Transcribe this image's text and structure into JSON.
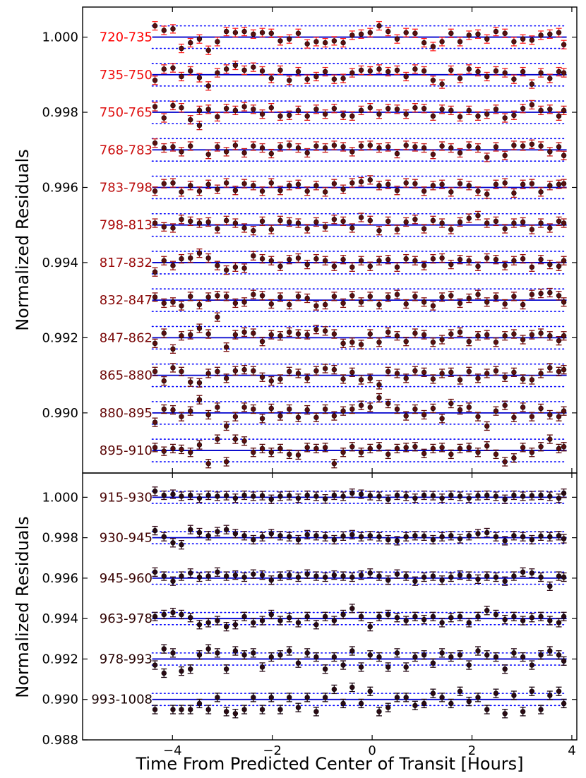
{
  "chart_data": [
    {
      "type": "scatter",
      "ylabel": "Normalized Residuals",
      "xlim": [
        -5.8,
        4.1
      ],
      "ylim": [
        0.9884,
        1.0008
      ],
      "yticks": [
        "1.000",
        "0.998",
        "0.996",
        "0.994",
        "0.992",
        "0.990"
      ],
      "ytick_values": [
        1.0,
        0.998,
        0.996,
        0.994,
        0.992,
        0.99
      ],
      "grid": false,
      "offset_step": 0.001,
      "band_half_width": 0.0003,
      "marker_color": "#5a0f0f",
      "model_line_color": "#0000cc",
      "band_line_color": "#0000ff",
      "series": [
        {
          "name": "720-735",
          "label_color": "#ff0000",
          "errorbar_color": "#ff2020",
          "offset": 1.0
        },
        {
          "name": "735-750",
          "label_color": "#f01010",
          "errorbar_color": "#e81818",
          "offset": 0.999
        },
        {
          "name": "750-765",
          "label_color": "#e01010",
          "errorbar_color": "#d81818",
          "offset": 0.998
        },
        {
          "name": "768-783",
          "label_color": "#cc0e0e",
          "errorbar_color": "#c81515",
          "offset": 0.997
        },
        {
          "name": "783-798",
          "label_color": "#bb0c0c",
          "errorbar_color": "#b81212",
          "offset": 0.996
        },
        {
          "name": "798-813",
          "label_color": "#aa0b0b",
          "errorbar_color": "#a81010",
          "offset": 0.995
        },
        {
          "name": "817-832",
          "label_color": "#990a0a",
          "errorbar_color": "#980e0e",
          "offset": 0.994
        },
        {
          "name": "832-847",
          "label_color": "#880909",
          "errorbar_color": "#880c0c",
          "offset": 0.993
        },
        {
          "name": "847-862",
          "label_color": "#7a0808",
          "errorbar_color": "#7a0b0b",
          "offset": 0.992
        },
        {
          "name": "865-880",
          "label_color": "#6e0707",
          "errorbar_color": "#6e0a0a",
          "offset": 0.991
        },
        {
          "name": "880-895",
          "label_color": "#640707",
          "errorbar_color": "#640909",
          "offset": 0.99
        },
        {
          "name": "895-910",
          "label_color": "#5a0606",
          "errorbar_color": "#5a0808",
          "offset": 0.989
        }
      ]
    },
    {
      "type": "scatter",
      "xlabel": "Time From Predicted Center of Transit [Hours]",
      "ylabel": "Normalized Residuals",
      "xlim": [
        -5.8,
        4.1
      ],
      "ylim": [
        0.988,
        1.0012
      ],
      "xticks": [
        "−4",
        "−2",
        "0",
        "2",
        "4"
      ],
      "xtick_values": [
        -4,
        -2,
        0,
        2,
        4
      ],
      "yticks": [
        "1.000",
        "0.998",
        "0.996",
        "0.994",
        "0.992",
        "0.990",
        "0.988"
      ],
      "ytick_values": [
        1.0,
        0.998,
        0.996,
        0.994,
        0.992,
        0.99,
        0.988
      ],
      "grid": false,
      "offset_step": 0.002,
      "band_half_width": 0.0003,
      "marker_color": "#2a0a14",
      "model_line_color": "#0000cc",
      "band_line_color": "#0000ff",
      "series": [
        {
          "name": "915-930",
          "label_color": "#4a0606",
          "errorbar_color": "#3a0818",
          "offset": 1.0
        },
        {
          "name": "930-945",
          "label_color": "#420505",
          "errorbar_color": "#340818",
          "offset": 0.998
        },
        {
          "name": "945-960",
          "label_color": "#3a0404",
          "errorbar_color": "#2e0816",
          "offset": 0.996
        },
        {
          "name": "963-978",
          "label_color": "#300303",
          "errorbar_color": "#280614",
          "offset": 0.994
        },
        {
          "name": "978-993",
          "label_color": "#260202",
          "errorbar_color": "#220512",
          "offset": 0.992
        },
        {
          "name": "993-1008",
          "label_color": "#180101",
          "errorbar_color": "#1a0410",
          "offset": 0.99
        }
      ]
    }
  ],
  "x_values_hours": [
    -4.35,
    -4.17,
    -3.99,
    -3.82,
    -3.64,
    -3.46,
    -3.28,
    -3.1,
    -2.92,
    -2.74,
    -2.56,
    -2.38,
    -2.2,
    -2.02,
    -1.84,
    -1.66,
    -1.48,
    -1.3,
    -1.12,
    -0.94,
    -0.76,
    -0.58,
    -0.4,
    -0.22,
    -0.04,
    0.14,
    0.32,
    0.5,
    0.68,
    0.86,
    1.04,
    1.22,
    1.4,
    1.58,
    1.76,
    1.94,
    2.12,
    2.3,
    2.48,
    2.66,
    2.84,
    3.02,
    3.2,
    3.38,
    3.56,
    3.74,
    3.84
  ],
  "residuals": {
    "720-735": [
      0.0003,
      0.00018,
      0.00022,
      -0.0003,
      -0.00015,
      -5e-05,
      -0.00035,
      -0.00012,
      0.00015,
      0.00012,
      0.00015,
      8e-05,
      0.00012,
      0.0001,
      -0.0001,
      -5e-05,
      0.0001,
      -0.00018,
      -0.00012,
      -0.00015,
      -0.0001,
      -0.00015,
      5e-05,
      8e-05,
      0.00012,
      0.0003,
      0.00015,
      -5e-05,
      0.00012,
      0.0001,
      -0.00015,
      -0.00025,
      -0.00012,
      0.0001,
      -0.00012,
      5e-05,
      8e-05,
      -5e-05,
      0.00015,
      0.0001,
      -0.00012,
      -5e-05,
      -8e-05,
      5e-05,
      8e-05,
      0.00012,
      -0.0002
    ],
    "735-750": [
      -0.00015,
      0.00015,
      0.00018,
      -5e-05,
      0.0001,
      -8e-05,
      -0.0003,
      5e-05,
      0.00015,
      0.00025,
      0.00012,
      0.0002,
      0.0001,
      -0.0001,
      0.00012,
      -0.00015,
      8e-05,
      -0.00012,
      -5e-05,
      8e-05,
      -0.00012,
      -0.0001,
      5e-05,
      0.00012,
      0.0001,
      0.00015,
      8e-05,
      0.00012,
      -5e-05,
      0.00015,
      0.0001,
      -0.00015,
      -0.00025,
      0.00012,
      -0.0001,
      0.00015,
      8e-05,
      -5e-05,
      0.0001,
      5e-05,
      -0.00012,
      8e-05,
      -0.00025,
      5e-05,
      -0.0001,
      8e-05,
      5e-05
    ],
    "750-765": [
      0.00015,
      -0.00015,
      0.00018,
      0.00012,
      -0.0002,
      5e-05,
      8e-05,
      -0.00012,
      0.0001,
      5e-05,
      0.00015,
      8e-05,
      -5e-05,
      0.00012,
      -0.0001,
      -8e-05,
      5e-05,
      -0.0001,
      8e-05,
      -5e-05,
      0.0001,
      -8e-05,
      -0.0001,
      5e-05,
      0.00012,
      -5e-05,
      0.0001,
      8e-05,
      -5e-05,
      0.00012,
      0.0001,
      -0.0001,
      8e-05,
      5e-05,
      -0.00012,
      5e-05,
      -0.0001,
      -5e-05,
      8e-05,
      -0.00015,
      -8e-05,
      0.0001,
      0.0002,
      5e-05,
      8e-05,
      -0.0001,
      5e-05
    ],
    "768-783": [
      0.00018,
      5e-05,
      8e-05,
      -5e-05,
      0.0001,
      0.00065,
      -0.00012,
      8e-05,
      -5e-05,
      0.00012,
      -8e-05,
      0.0001,
      5e-05,
      -0.0001,
      8e-05,
      0.00012,
      5e-05,
      -8e-05,
      0.0001,
      5e-05,
      0.00012,
      8e-05,
      -5e-05,
      0.0001,
      0.00012,
      5e-05,
      8e-05,
      -0.0001,
      0.00012,
      8e-05,
      5e-05,
      -0.00012,
      0.0001,
      5e-05,
      -8e-05,
      0.0001,
      5e-05,
      -0.0002,
      8e-05,
      -0.00015,
      0.00012,
      0.0001,
      0.00015,
      0.0001,
      -5e-05,
      8e-05,
      -0.00015
    ],
    "783-798": [
      -0.0001,
      0.0001,
      0.00012,
      -0.00012,
      5e-05,
      -0.0001,
      8e-05,
      -5e-05,
      0.00012,
      -8e-05,
      0.0001,
      5e-05,
      -0.0001,
      0.00012,
      -8e-05,
      5e-05,
      8e-05,
      -0.0001,
      5e-05,
      -0.00012,
      0.0001,
      -5e-05,
      0.00012,
      0.00015,
      0.0002,
      5e-05,
      8e-05,
      -8e-05,
      0.00012,
      0.0001,
      -0.0001,
      5e-05,
      8e-05,
      -0.00012,
      0.0001,
      5e-05,
      -0.0001,
      -0.00018,
      8e-05,
      0.00012,
      -0.00015,
      8e-05,
      0.0001,
      -0.00012,
      5e-05,
      8e-05,
      0.0001
    ],
    "798-813": [
      5e-05,
      -5e-05,
      -8e-05,
      0.00015,
      0.0001,
      5e-05,
      8e-05,
      -0.0001,
      0.00012,
      5e-05,
      -8e-05,
      -0.00015,
      0.0001,
      -0.00012,
      0.00012,
      8e-05,
      5e-05,
      -0.0001,
      8e-05,
      -5e-05,
      0.00015,
      0.0001,
      -8e-05,
      0.0002,
      0.00012,
      -0.00015,
      0.0001,
      -0.00012,
      8e-05,
      0.00015,
      -0.0001,
      0.00012,
      5e-05,
      -0.00012,
      8e-05,
      0.00018,
      0.00025,
      5e-05,
      0.0001,
      -0.0001,
      5e-05,
      8e-05,
      -0.00012,
      5e-05,
      -8e-05,
      0.0001,
      5e-05
    ],
    "817-832": [
      -0.00025,
      5e-05,
      -8e-05,
      0.0001,
      0.00012,
      0.00025,
      0.00012,
      -8e-05,
      -0.0002,
      -0.00012,
      -0.00015,
      0.00018,
      0.0001,
      5e-05,
      -0.0001,
      8e-05,
      0.00012,
      -5e-05,
      0.0001,
      5e-05,
      -0.0001,
      8e-05,
      -0.00012,
      5e-05,
      -0.0001,
      5e-05,
      8e-05,
      -0.00012,
      0.0001,
      5e-05,
      -8e-05,
      0.0001,
      0.00012,
      -5e-05,
      8e-05,
      5e-05,
      -0.0001,
      0.00012,
      8e-05,
      -8e-05,
      5e-05,
      0.0001,
      -0.00012,
      8e-05,
      -5e-05,
      -0.0001,
      5e-05
    ],
    "832-847": [
      8e-05,
      -8e-05,
      -5e-05,
      -0.00015,
      0.0001,
      -0.00012,
      8e-05,
      0.00012,
      0.0001,
      -8e-05,
      -5e-05,
      0.00015,
      0.00012,
      -0.0001,
      8e-05,
      -0.00012,
      0.0001,
      5e-05,
      -0.00015,
      -0.00012,
      0.0001,
      -8e-05,
      0.00012,
      -5e-05,
      0.0001,
      -0.00012,
      8e-05,
      0.00015,
      -0.0001,
      0.0001,
      -5e-05,
      -0.00015,
      8e-05,
      0.00012,
      -8e-05,
      5e-05,
      0.00015,
      -5e-05,
      8e-05,
      -0.0001,
      0.0001,
      -0.00012,
      0.00015,
      0.00018,
      0.0002,
      0.00012,
      -5e-05
    ],
    "847-862": [
      -0.00015,
      0.00012,
      -0.0003,
      5e-05,
      8e-05,
      0.00025,
      0.0001,
      0.00055,
      -0.00025,
      8e-05,
      0.00015,
      0.00012,
      -0.0001,
      8e-05,
      5e-05,
      0.00015,
      0.0001,
      8e-05,
      0.00022,
      0.00018,
      0.0001,
      -0.00015,
      -0.00012,
      -0.00018,
      0.0001,
      -0.00012,
      0.00015,
      5e-05,
      -0.0001,
      0.00012,
      8e-05,
      -0.00012,
      -5e-05,
      0.0001,
      0.00015,
      -0.0001,
      5e-05,
      8e-05,
      -0.00012,
      5e-05,
      0.0001,
      -5e-05,
      8e-05,
      0.00012,
      5e-05,
      -8e-05,
      5e-05
    ],
    "865-880": [
      0.0001,
      -0.00015,
      0.0002,
      0.0001,
      -0.00018,
      -0.0002,
      5e-05,
      0.0001,
      -8e-05,
      0.00012,
      0.00015,
      0.00012,
      -5e-05,
      -0.00015,
      -0.0001,
      0.0001,
      5e-05,
      -8e-05,
      0.00012,
      0.00018,
      0.00015,
      -0.0001,
      8e-05,
      -0.00012,
      -8e-05,
      -0.00025,
      0.0001,
      5e-05,
      -8e-05,
      0.00012,
      8e-05,
      -0.0001,
      5e-05,
      8e-05,
      -0.00012,
      0.0001,
      -8e-05,
      5e-05,
      0.00012,
      -5e-05,
      8e-05,
      -0.0001,
      -0.00012,
      5e-05,
      0.0002,
      0.0001,
      0.00015
    ],
    "880-895": [
      -0.00025,
      0.0001,
      8e-05,
      -0.0001,
      5e-05,
      0.00035,
      -5e-05,
      0.00015,
      -0.00035,
      -0.0001,
      0.00015,
      0.0001,
      -0.00015,
      0.00012,
      -8e-05,
      0.0001,
      -0.00012,
      8e-05,
      -0.00012,
      0.0001,
      -8e-05,
      5e-05,
      0.0001,
      0.0002,
      0.00015,
      0.0004,
      0.00025,
      0.0001,
      -8e-05,
      0.0001,
      -5e-05,
      0.00012,
      -0.00015,
      0.00025,
      8e-05,
      0.00015,
      -0.0001,
      -0.00035,
      5e-05,
      0.0002,
      -0.00012,
      0.00015,
      -0.0001,
      0.00012,
      -5e-05,
      -0.0001,
      5e-05
    ],
    "895-910": [
      8e-05,
      -2e-05,
      5e-05,
      3e-05,
      -5e-05,
      0.00015,
      -0.00035,
      0.0003,
      -0.0003,
      0.0003,
      0.00025,
      -5e-05,
      5e-05,
      -5e-05,
      5e-05,
      -0.0001,
      -0.00012,
      8e-05,
      5e-05,
      8e-05,
      -0.00035,
      -5e-05,
      0.0001,
      -5e-05,
      5e-05,
      0.0001,
      -0.0001,
      5e-05,
      8e-05,
      0.0001,
      -8e-05,
      5e-05,
      8e-05,
      -0.0001,
      5e-05,
      8e-05,
      -5e-05,
      0.00012,
      -0.0001,
      -0.0003,
      -0.0002,
      8e-05,
      -5e-05,
      0.0001,
      0.0003,
      5e-05,
      0.0001
    ]
  },
  "residuals_lower": {
    "915-930": [
      0.0003,
      0.0001,
      0.00015,
      5e-05,
      0.0001,
      -5e-05,
      0.0001,
      5e-05,
      8e-05,
      -5e-05,
      0.0001,
      5e-05,
      8e-05,
      -0.0001,
      5e-05,
      8e-05,
      -5e-05,
      0.0001,
      5e-05,
      -8e-05,
      0.0001,
      5e-05,
      0.0002,
      0.00015,
      8e-05,
      5e-05,
      -0.0001,
      0.0001,
      5e-05,
      -5e-05,
      0.0001,
      8e-05,
      -5e-05,
      0.0001,
      5e-05,
      -5e-05,
      8e-05,
      0.0001,
      5e-05,
      -0.0001,
      0.0001,
      5e-05,
      8e-05,
      0.0001,
      5e-05,
      -5e-05,
      0.0002
    ],
    "930-945": [
      0.00035,
      5e-05,
      -0.00025,
      -0.00035,
      0.0004,
      0.00025,
      0.0001,
      0.0003,
      0.0004,
      0.0002,
      0.0001,
      -0.0001,
      5e-05,
      0.0002,
      0.0001,
      5e-05,
      -0.0001,
      0.00015,
      0.0001,
      5e-05,
      -0.0001,
      8e-05,
      0.00015,
      5e-05,
      0.0001,
      5e-05,
      -0.0001,
      -0.00015,
      5e-05,
      0.0001,
      8e-05,
      -0.0001,
      5e-05,
      0.0001,
      -5e-05,
      0.0001,
      0.0002,
      0.00025,
      5e-05,
      -0.00015,
      0.0001,
      5e-05,
      -0.0001,
      8e-05,
      5e-05,
      0.0001,
      -5e-05
    ],
    "945-960": [
      0.0003,
      0.0001,
      -0.00015,
      0.0001,
      0.00025,
      5e-05,
      0.0001,
      0.0003,
      0.0001,
      0.00015,
      5e-05,
      0.0002,
      0.00015,
      -0.0001,
      0.0001,
      0.00015,
      5e-05,
      0.0002,
      0.0001,
      5e-05,
      0.00015,
      0.0001,
      5e-05,
      0.00015,
      0.00025,
      0.0001,
      -0.0001,
      0.0002,
      0.0001,
      -0.00015,
      5e-05,
      0.0001,
      -0.0001,
      5e-05,
      0.00015,
      0.0001,
      -5e-05,
      0.0001,
      5e-05,
      -0.00015,
      0.0001,
      0.0003,
      0.00025,
      5e-05,
      -0.0004,
      0.0001,
      5e-05
    ],
    "963-978": [
      0.0001,
      0.0002,
      0.0003,
      0.0002,
      5e-05,
      -0.0003,
      -0.0002,
      -0.0001,
      -0.0004,
      -0.0003,
      0.0001,
      -0.0002,
      -0.0001,
      0.0002,
      -0.0001,
      5e-05,
      -0.0002,
      0.0001,
      -0.0003,
      0.0001,
      -0.0001,
      0.0002,
      0.0005,
      0.0001,
      -0.0004,
      0.0001,
      0.0002,
      5e-05,
      -0.0001,
      0.0001,
      -5e-05,
      0.0001,
      -0.0002,
      5e-05,
      0.0001,
      -0.0002,
      0.0001,
      0.0004,
      0.0002,
      -5e-05,
      0.0001,
      -0.0001,
      5e-05,
      0.0001,
      -0.0001,
      -0.0002,
      0.0001
    ],
    "978-993": [
      -0.0003,
      0.0005,
      0.0003,
      -0.0006,
      -0.0005,
      0.0002,
      0.0005,
      0.0003,
      -0.0005,
      0.0004,
      0.0002,
      0.0003,
      -0.0004,
      0.0001,
      0.0002,
      0.0004,
      -0.0002,
      0.0003,
      0.0001,
      -0.0005,
      0.0001,
      -0.0003,
      0.0004,
      -0.0004,
      0.0002,
      0.0001,
      -0.0004,
      0.0003,
      -0.0004,
      0.0001,
      0.0002,
      -0.0002,
      0.0003,
      0.0001,
      0.0002,
      -0.0003,
      0.0004,
      0.0002,
      0.0001,
      -0.0005,
      0.0003,
      0.0001,
      -0.0003,
      0.0002,
      0.0004,
      0.0002,
      -0.0001
    ],
    "993-1008": [
      -0.0005,
      0.0013,
      -0.0005,
      -0.0005,
      -0.0005,
      -0.0002,
      -0.0005,
      0.0001,
      -0.0006,
      -0.0007,
      -0.0005,
      0.0001,
      -0.0005,
      0.0001,
      -0.0005,
      0.0001,
      -0.0004,
      0.0001,
      -0.0006,
      0.0001,
      0.0005,
      -0.0002,
      0.0006,
      -0.0002,
      0.0004,
      -0.0006,
      -0.0004,
      0.0001,
      0.0001,
      -0.0003,
      -0.0002,
      0.0003,
      0.0001,
      -0.0002,
      0.0004,
      -0.0001,
      0.0001,
      -0.0005,
      0.0003,
      -0.0007,
      0.0002,
      -0.0006,
      0.0004,
      -0.0005,
      0.0002,
      0.0004,
      -0.0002
    ]
  }
}
